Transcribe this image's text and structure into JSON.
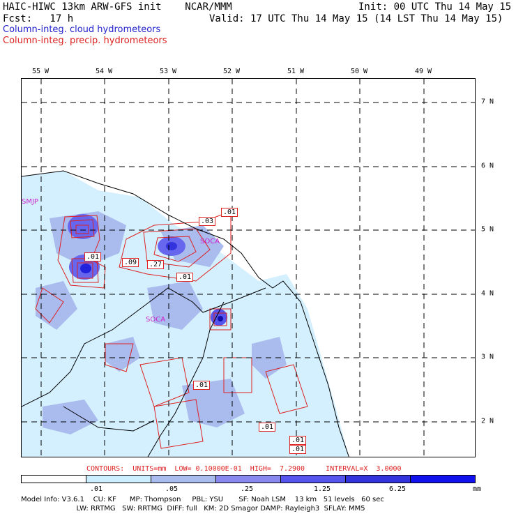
{
  "header": {
    "title_left": "HAIC-HIWC 13km ARW-GFS init    NCAR/MMM",
    "init": "Init: 00 UTC Thu 14 May 15",
    "fcst": "Fcst:   17 h",
    "valid": "Valid: 17 UTC Thu 14 May 15 (14 LST Thu 14 May 15)",
    "line_cloud": "Column-integ. cloud hydrometeors",
    "line_precip": "Column-integ. precip. hydrometeors",
    "color_cloud": "#2222cc",
    "color_precip": "#dd2222"
  },
  "axes": {
    "lon_labels": [
      "55 W",
      "54 W",
      "53 W",
      "52 W",
      "51 W",
      "50 W",
      "49 W"
    ],
    "lat_labels": [
      "7 N",
      "6 N",
      "5 N",
      "4 N",
      "3 N",
      "2 N"
    ]
  },
  "stations": [
    "SMJP",
    "SOCA",
    "SOCA"
  ],
  "contour_labels": [
    ".01",
    ".03",
    ".09",
    ".27",
    ".01",
    ".01",
    ".01",
    ".01",
    ".01",
    ".01"
  ],
  "contours_info": "CONTOURS:  UNITS=mm  LOW= 0.10000E-01  HIGH=  7.2900     INTERVAL=X  3.0000",
  "legend": {
    "levels": [
      ".01",
      ".05",
      ".25",
      "1.25",
      "6.25"
    ],
    "unit": "mm",
    "colors": [
      "#ffffff",
      "#cceeff",
      "#aabbee",
      "#8888ee",
      "#5555ee",
      "#3333dd",
      "#1111ee"
    ]
  },
  "model_info": {
    "line1": "Model Info: V3.6.1    CU: KF      MP: Thompson     PBL: YSU       SF: Noah LSM    13 km   51 levels   60 sec",
    "line2": "                         LW: RRTMG   SW: RRTMG  DIFF: full   KM: 2D Smagor DAMP: Rayleigh3  SFLAY: MM5"
  }
}
